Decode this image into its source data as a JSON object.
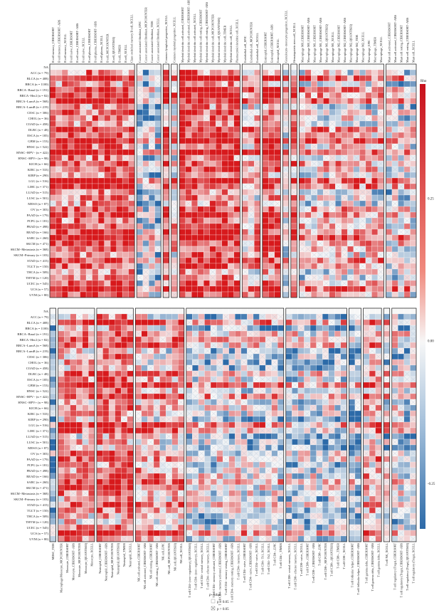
{
  "chart_data": {
    "type": "heatmap",
    "color_legend": {
      "title": "Rho",
      "ticks": [
        "0.25",
        "0.00",
        "-0.25"
      ],
      "tick_values": [
        0.25,
        0.0,
        -0.25
      ],
      "range": [
        -0.33,
        0.45
      ],
      "colors": {
        "positive": "#d7191c",
        "neutral": "#f7f7f7",
        "negative": "#2c6aa8"
      }
    },
    "significance_legend": {
      "title": "p-value",
      "items": [
        {
          "symbol": "empty",
          "label": "p < 0.05"
        },
        {
          "symbol": "cross",
          "label": "p > 0.05"
        }
      ]
    },
    "rows": [
      "NA",
      "ACC (n = 79)",
      "BLCA (n = 408)",
      "BRCA (n = 1100)",
      "BRCA−Basal (n = 191)",
      "BRCA−Her2 (n = 82)",
      "BRCA−LumA (n = 568)",
      "BRCA−LumB (n = 219)",
      "CESC (n = 306)",
      "CHOL (n = 36)",
      "COAD (n = 458)",
      "DLBC (n = 48)",
      "ESCA (n = 185)",
      "GBM (n = 153)",
      "HNSC (n = 522)",
      "HNSC−HPV− (n = 422)",
      "HNSC−HPV+ (n = 98)",
      "KICH (n = 66)",
      "KIRC (n = 533)",
      "KIRP (n = 290)",
      "LGG (n = 516)",
      "LIHC (n = 371)",
      "LUAD (n = 515)",
      "LUSC (n = 501)",
      "MESO (n = 87)",
      "OV (n = 303)",
      "PAAD (n = 179)",
      "PCPG (n = 181)",
      "PRAD (n = 498)",
      "READ (n = 166)",
      "SARC (n = 260)",
      "SKCM (n = 471)",
      "SKCM−Metastasis (n = 368)",
      "SKCM−Primary (n = 103)",
      "STAD (n = 415)",
      "TGCT (n = 150)",
      "THCA (n = 509)",
      "THYM (n = 120)",
      "UCEC (n = 545)",
      "UCS (n = 57)",
      "UVM (n = 80)"
    ],
    "top_groups": [
      {
        "name": "B cell",
        "columns": [
          "B cell memory_CIBERSORT",
          "B cell memory_CIBERSORT−ABS",
          "B cell memory_XCELL",
          "B cell naive_CIBERSORT",
          "B cell naive_CIBERSORT−ABS",
          "B cell naive_XCELL",
          "B cell plasma_CIBERSORT",
          "B cell plasma_CIBERSORT−ABS",
          "B cell plasma_XCELL",
          "B cell_MCPCOUNTER",
          "B cell_QUANTISEQ",
          "B cell_TIMER",
          "B cell_XCELL",
          "Class−switched memory B cell_XCELL"
        ]
      },
      {
        "name": "CAF",
        "columns": [
          "Cancer associated fibroblast_EPIC",
          "Cancer associated fibroblast_MCPCOUNTER",
          "Cancer associated fibroblast_TIDE",
          "Cancer associated fibroblast_XCELL"
        ]
      },
      {
        "name": "CLP",
        "columns": [
          "Common lymphoid progenitor_XCELL"
        ]
      },
      {
        "name": "CMP",
        "columns": [
          "Common myeloid progenitor_XCELL"
        ]
      },
      {
        "name": "DC",
        "columns": [
          "Myeloid dendritic cell activated_CIBERSORT",
          "Myeloid dendritic cell activated_CIBERSORT−ABS",
          "Myeloid dendritic cell activated_XCELL",
          "Myeloid dendritic cell resting_CIBERSORT",
          "Myeloid dendritic cell resting_CIBERSORT−ABS",
          "Myeloid dendritic cell_MCPCOUNTER",
          "Myeloid dendritic cell_QUANTISEQ",
          "Myeloid dendritic cell_TIMER",
          "Myeloid dendritic cell_XCELL",
          "Plasmacytoid dendritic cell_XCELL"
        ]
      },
      {
        "name": "Endo",
        "columns": [
          "Endothelial cell_EPIC",
          "Endothelial cell_MCPCOUNTER",
          "Endothelial cell_XCELL"
        ]
      },
      {
        "name": "Eos",
        "columns": [
          "Eosinophil_CIBERSORT",
          "Eosinophil_CIBERSORT−ABS",
          "Eosinophil_XCELL"
        ]
      },
      {
        "name": "GMP",
        "columns": [
          "Granulocyte−monocyte progenitor_XCELL"
        ]
      },
      {
        "name": "HSC",
        "columns": [
          "Hematopoietic stem cell_XCELL"
        ]
      },
      {
        "name": "Mac",
        "columns": [
          "Macrophage M0_CIBERSORT",
          "Macrophage M0_CIBERSORT−ABS",
          "Macrophage M1_CIBERSORT",
          "Macrophage M1_CIBERSORT−ABS",
          "Macrophage M1_QUANTISEQ",
          "Macrophage M1_XCELL",
          "Macrophage M2_CIBERSORT",
          "Macrophage M2_CIBERSORT−ABS",
          "Macrophage M2_QUANTISEQ",
          "Macrophage M2_TIDE",
          "Macrophage M2_XCELL",
          "Macrophage_EPIC",
          "Macrophage_TIMER",
          "Macrophage_XCELL"
        ]
      },
      {
        "name": "Mast",
        "columns": [
          "Mast cell activated_CIBERSORT",
          "Mast cell activated_CIBERSORT−ABS",
          "Mast cell resting_CIBERSORT",
          "Mast cell resting_CIBERSORT−ABS",
          "Mast cell_XCELL"
        ]
      }
    ],
    "bottom_groups": [
      {
        "name": "MDSC",
        "columns": [
          "MDSC_TIDE"
        ]
      },
      {
        "name": "Mono",
        "columns": [
          "Macrophage/Monocyte_MCPCOUNTER",
          "Monocyte_CIBERSORT",
          "Monocyte_CIBERSORT−ABS",
          "Monocyte_MCPCOUNTER",
          "Monocyte_QUANTISEQ",
          "Monocyte_XCELL"
        ]
      },
      {
        "name": "Neu",
        "columns": [
          "Neutrophil_CIBERSORT",
          "Neutrophil_CIBERSORT−ABS",
          "Neutrophil_MCPCOUNTER",
          "Neutrophil_QUANTISEQ",
          "Neutrophil_TIMER",
          "Neutrophil_XCELL"
        ]
      },
      {
        "name": "NK",
        "columns": [
          "NK cell activated_CIBERSORT",
          "NK cell activated_CIBERSORT−ABS",
          "NK cell resting_CIBERSORT",
          "NK cell resting_CIBERSORT−ABS",
          "NK cell_EPIC",
          "NK cell_MCPCOUNTER",
          "NK cell_QUANTISEQ",
          "NK cell_XCELL"
        ]
      },
      {
        "name": "CD4",
        "columns": [
          "T cell CD4+ (non−regulatory)_QUANTISEQ",
          "T cell CD4+ (non−regulatory)_XCELL",
          "T cell CD4+ central memory_XCELL",
          "T cell CD4+ effector memory_XCELL",
          "T cell CD4+ memory activated_CIBERSORT",
          "T cell CD4+ memory activated_CIBERSORT−ABS",
          "T cell CD4+ memory resting_CIBERSORT",
          "T cell CD4+ memory resting_CIBERSORT−ABS",
          "T cell CD4+ memory_XCELL",
          "T cell CD4+ naive_CIBERSORT",
          "T cell CD4+ naive_CIBERSORT−ABS",
          "T cell CD4+ naive_XCELL",
          "T cell CD4+ Th1_XCELL",
          "T cell CD4+ Th2_XCELL",
          "T cell CD4+_EPIC",
          "T cell CD4+_TIMER"
        ]
      },
      {
        "name": "CD8",
        "columns": [
          "T cell CD8+ central memory_XCELL",
          "T cell CD8+ effector memory_XCELL",
          "T cell CD8+ naive_XCELL",
          "T cell CD8+_CIBERSORT",
          "T cell CD8+_CIBERSORT−ABS",
          "T cell CD8+_EPIC",
          "T cell CD8+_MCPCOUNTER",
          "T cell CD8+_QUANTISEQ",
          "T cell CD8+_TIMER",
          "T cell CD8+_XCELL"
        ]
      },
      {
        "name": "Tfh",
        "columns": [
          "T cell follicular helper_CIBERSORT",
          "T cell follicular helper_CIBERSORT−ABS"
        ]
      },
      {
        "name": "Tgd",
        "columns": [
          "T cell gamma delta_CIBERSORT",
          "T cell gamma delta_CIBERSORT−ABS",
          "T cell gamma delta_XCELL"
        ]
      },
      {
        "name": "TNK",
        "columns": [
          "T cell NK_XCELL"
        ]
      },
      {
        "name": "Treg",
        "columns": [
          "T cell regulatory (Tregs)_CIBERSORT",
          "T cell regulatory (Tregs)_CIBERSORT−ABS",
          "T cell regulatory (Tregs)_QUANTISEQ",
          "T cell regulatory (Tregs)_XCELL"
        ]
      }
    ]
  }
}
